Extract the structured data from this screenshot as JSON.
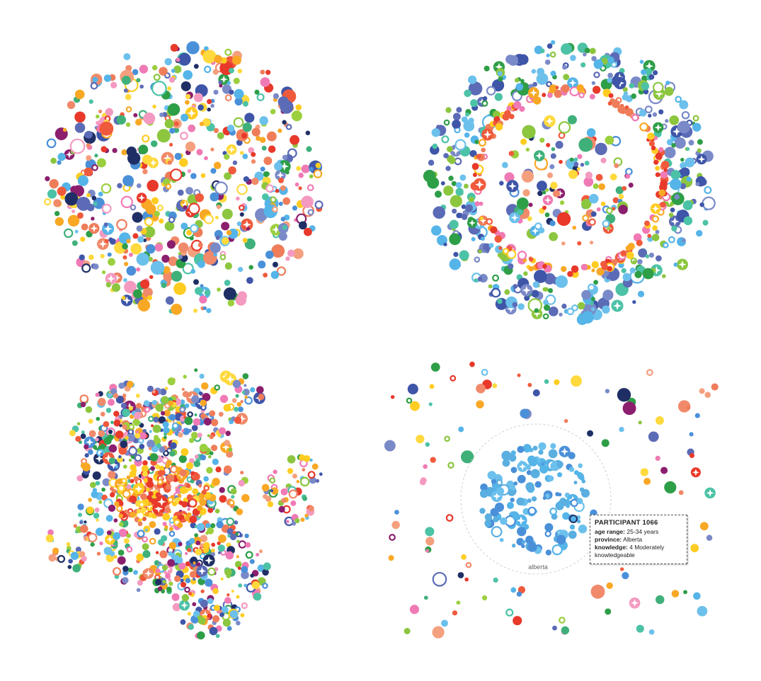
{
  "colors": {
    "palette": [
      "#3e55a8",
      "#5c6bb6",
      "#7a8ac8",
      "#55b4e8",
      "#6cc0ec",
      "#4a90d9",
      "#ffcc22",
      "#ffd93d",
      "#f9a825",
      "#e8392b",
      "#f05a3c",
      "#ef7d5a",
      "#f08a6a",
      "#f4a07e",
      "#f07ab5",
      "#f49ac1",
      "#8cc63f",
      "#9bcf3e",
      "#2e9e47",
      "#3fb07a",
      "#4cc2a6",
      "#8b1f6e",
      "#1f2f66",
      "#ffffff"
    ],
    "ring_accent": "#e8392b",
    "cluster_blue": "#55b4e8",
    "tooltip_border": "#555555"
  },
  "chart_data": [
    {
      "type": "scatter",
      "panel": "top-left",
      "layout": "uniform circular cluster of participant bubbles"
    },
    {
      "type": "scatter",
      "panel": "top-right",
      "layout": "outer ring and inner cluster of participant bubbles"
    },
    {
      "type": "scatter",
      "panel": "bottom-left",
      "layout": "force-directed network of participant bubbles"
    },
    {
      "type": "scatter",
      "panel": "bottom-right",
      "layout": "province cluster with tooltip",
      "cluster_label": "alberta",
      "tooltip": {
        "title": "PARTICIPANT 1066",
        "rows": [
          {
            "key": "age range:",
            "value": "25-34 years"
          },
          {
            "key": "province:",
            "value": "Alberta"
          },
          {
            "key": "knowledge:",
            "value": "4 Moderately knowledgeable"
          }
        ]
      }
    }
  ]
}
